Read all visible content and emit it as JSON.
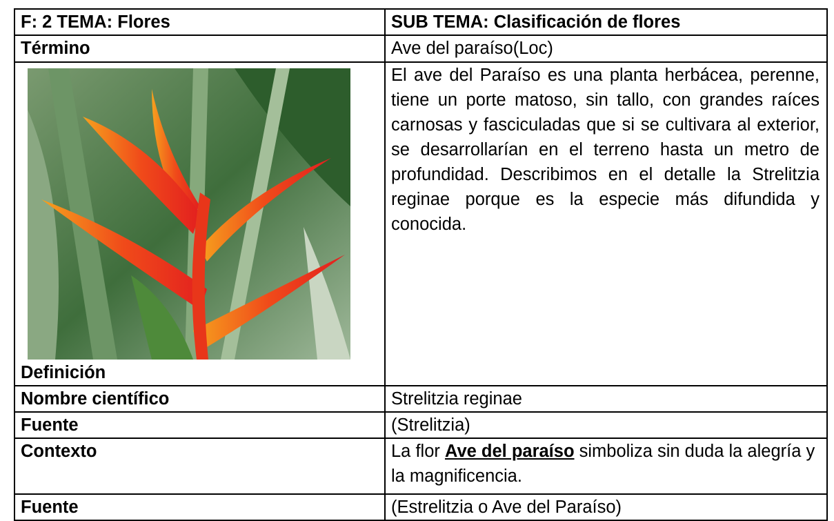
{
  "table": {
    "header": [
      "F: 2  TEMA: Flores",
      "SUB TEMA: Clasificación de flores"
    ],
    "rows": [
      [
        "Término",
        "Ave del paraíso(Loc)"
      ],
      [
        "Definición",
        "El ave del Paraíso es una planta herbácea, perenne, tiene un porte matoso, sin tallo, con grandes raíces carnosas y fasciculadas que si se cultivara al exterior, se desarrollarían en el terreno hasta un metro de profundidad. Describimos en el detalle la Strelitzia reginae porque es la especie más difundida y conocida."
      ],
      [
        "Nombre científico",
        "Strelitzia reginae"
      ],
      [
        "Fuente",
        "(Strelitzia)"
      ],
      [
        "Contexto",
        [
          "La flor",
          "Ave del paraíso",
          "simboliza sin duda la alegría y la magnificencia."
        ]
      ],
      [
        "Fuente",
        "(Estrelitzia o Ave del Paraíso)"
      ]
    ]
  }
}
